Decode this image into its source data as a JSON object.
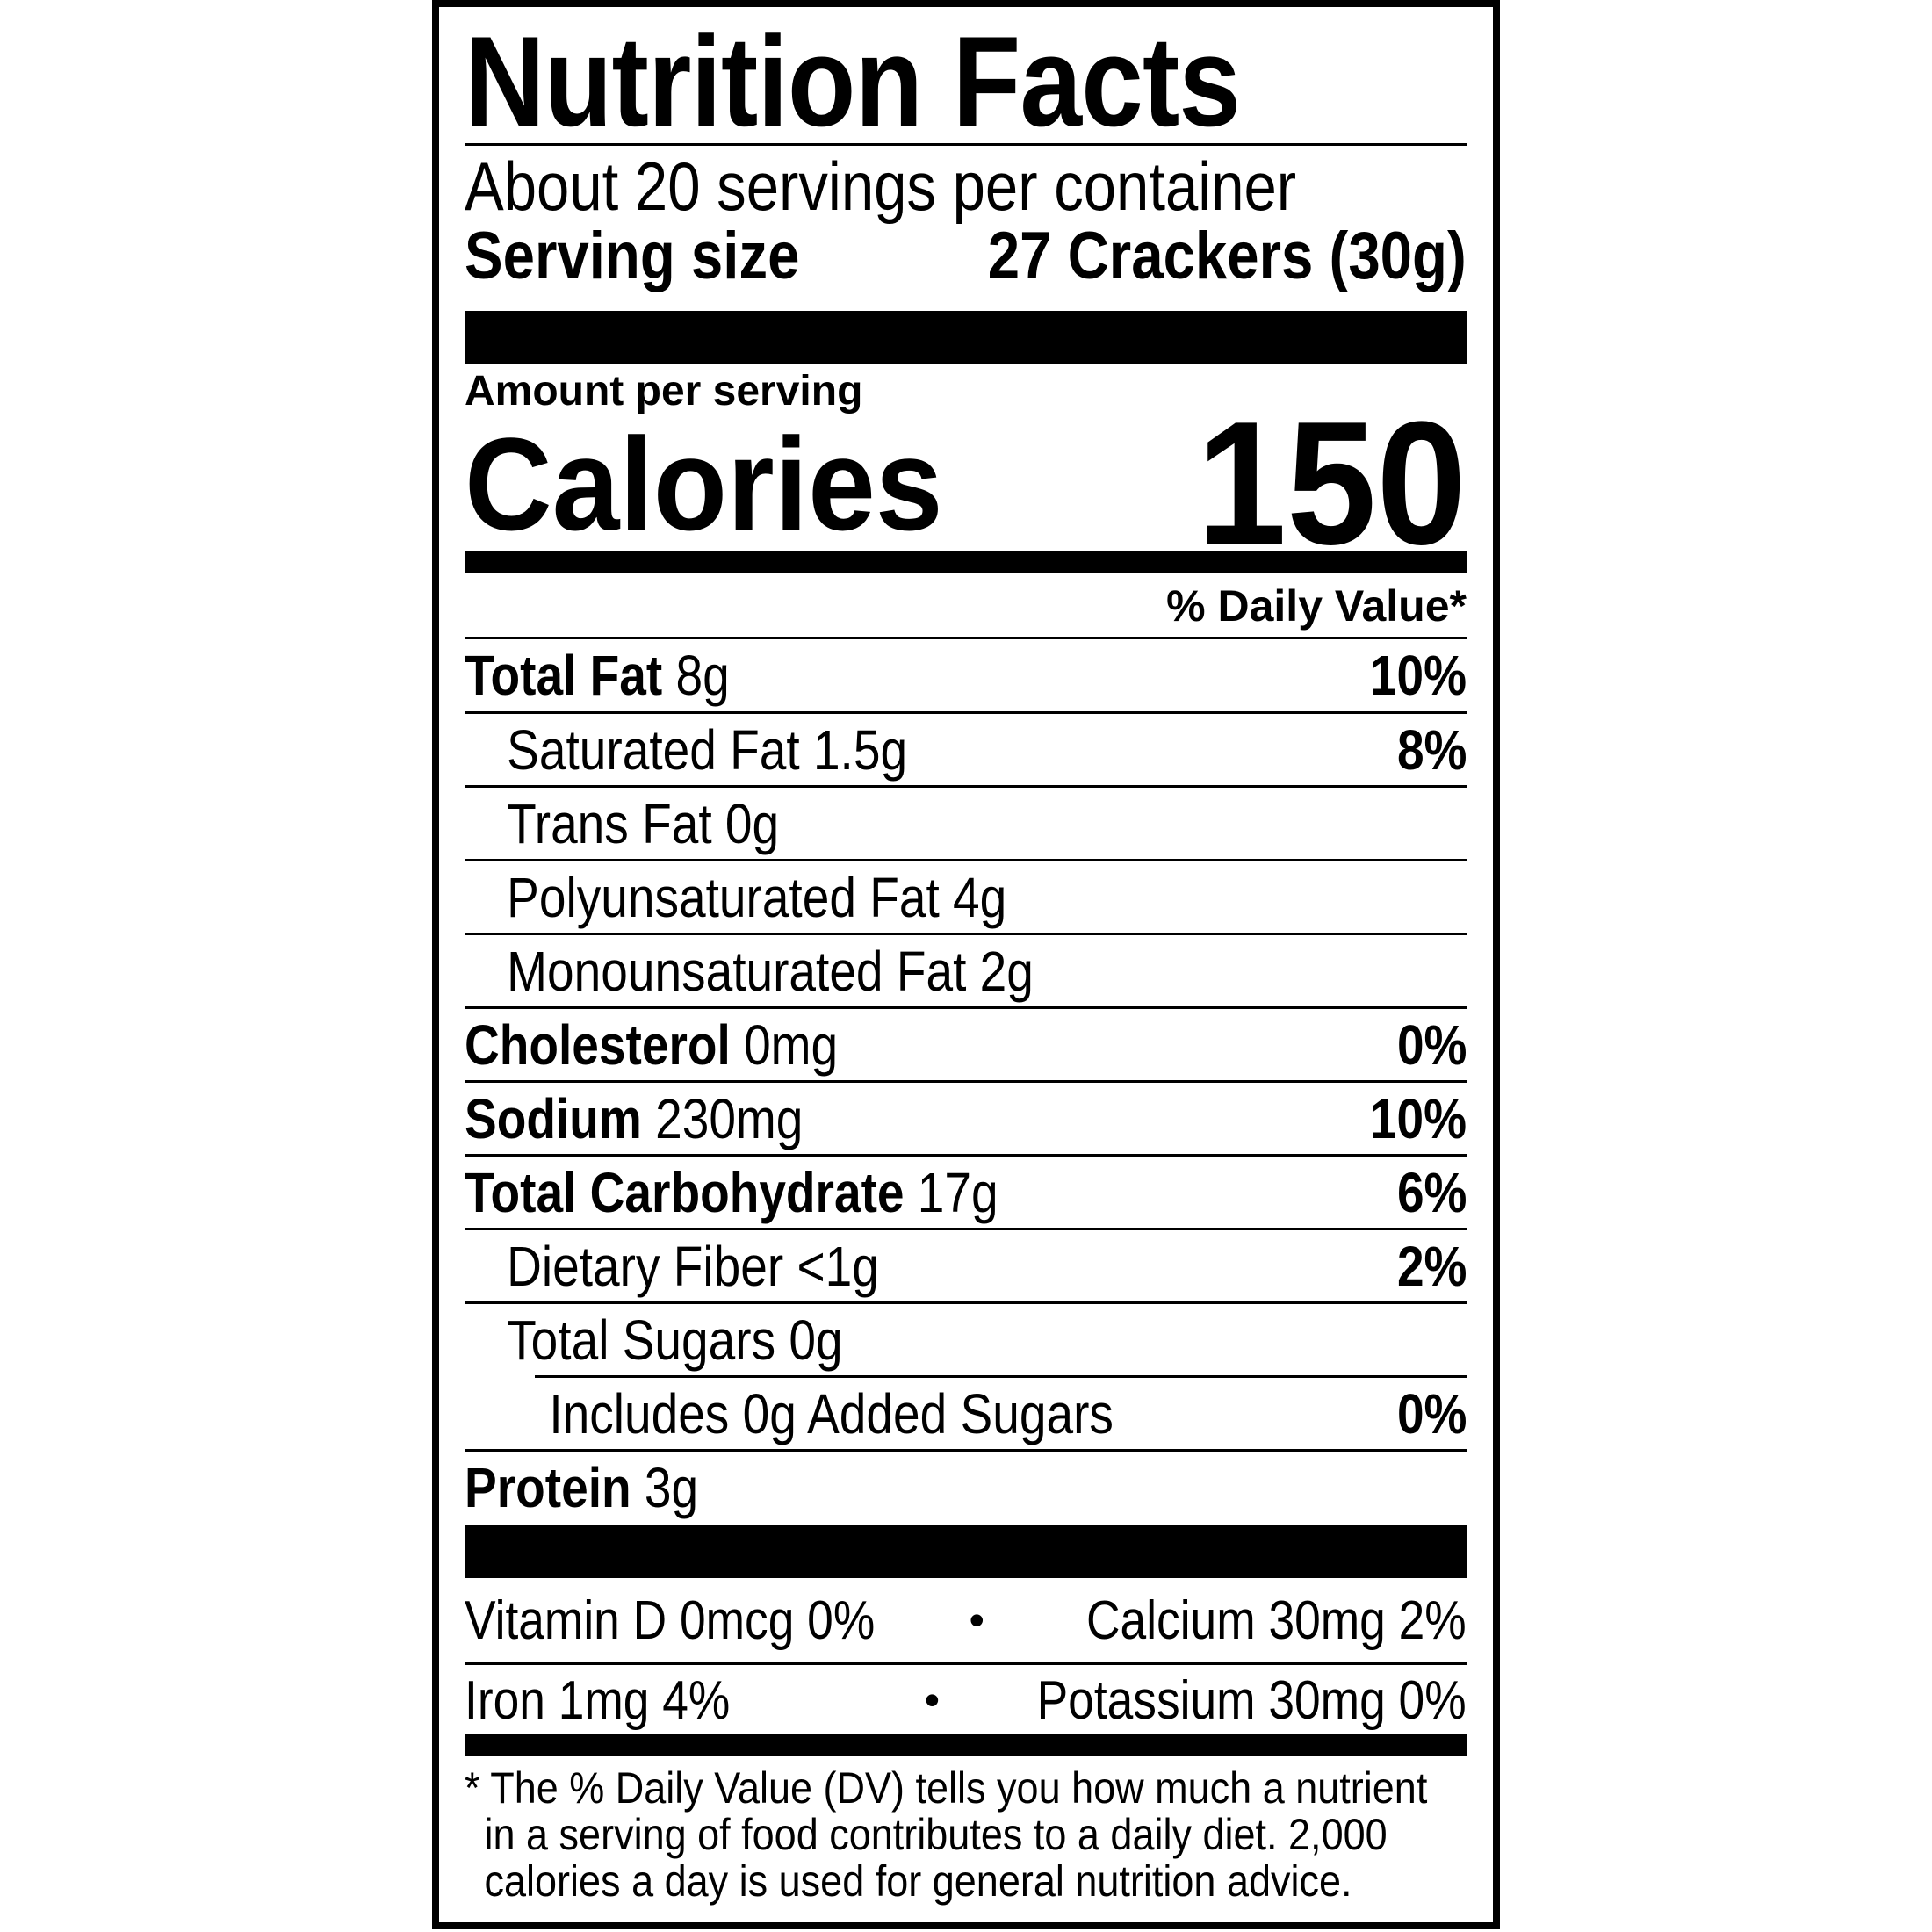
{
  "title": "Nutrition Facts",
  "servings_per_container": "About 20 servings per container",
  "serving_size": {
    "label": "Serving size",
    "value": "27 Crackers (30g)"
  },
  "amount_per_serving": "Amount per serving",
  "calories": {
    "label": "Calories",
    "value": "150"
  },
  "daily_value_header": "% Daily Value*",
  "nutrients": [
    {
      "name": "Total Fat",
      "amount": "8g",
      "dv": "10%"
    },
    {
      "name": "Saturated Fat 1.5g",
      "amount": "",
      "dv": "8%"
    },
    {
      "name": "Trans Fat 0g",
      "amount": "",
      "dv": ""
    },
    {
      "name": "Polyunsaturated Fat 4g",
      "amount": "",
      "dv": ""
    },
    {
      "name": "Monounsaturated Fat 2g",
      "amount": "",
      "dv": ""
    },
    {
      "name": "Cholesterol",
      "amount": "0mg",
      "dv": "0%"
    },
    {
      "name": "Sodium",
      "amount": "230mg",
      "dv": "10%"
    },
    {
      "name": "Total Carbohydrate",
      "amount": "17g",
      "dv": "6%"
    },
    {
      "name": "Dietary Fiber <1g",
      "amount": "",
      "dv": "2%"
    },
    {
      "name": "Total Sugars 0g",
      "amount": "",
      "dv": ""
    },
    {
      "name": "Includes 0g Added Sugars",
      "amount": "",
      "dv": "0%"
    },
    {
      "name": "Protein",
      "amount": "3g",
      "dv": ""
    }
  ],
  "vitamins": [
    {
      "left": "Vitamin D 0mcg 0%",
      "bullet": "•",
      "right": "Calcium 30mg 2%"
    },
    {
      "left": "Iron 1mg 4%",
      "bullet": "•",
      "right": "Potassium 30mg 0%"
    }
  ],
  "footnote": [
    "* The % Daily Value (DV) tells you how much a nutrient",
    "in a serving of food contributes to a daily diet. 2,000",
    "calories a day is used for general nutrition advice."
  ]
}
